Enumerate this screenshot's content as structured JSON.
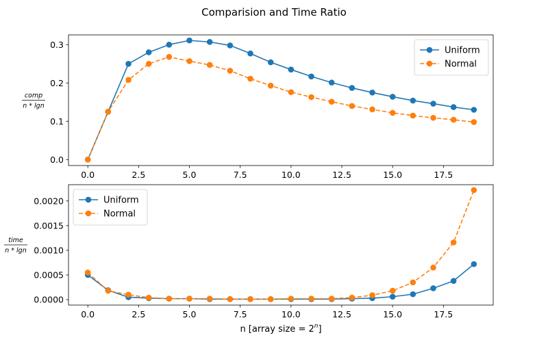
{
  "colors": {
    "uniform": "#1f77b4",
    "normal": "#ff7f0e"
  },
  "chart_data": [
    {
      "type": "line",
      "title": "Comparision and Time Ratio",
      "ylabel": {
        "numerator": "comp",
        "denominator": "n * lgn"
      },
      "xlabel": "",
      "xlim": [
        -0.95,
        19.95
      ],
      "ylim": [
        -0.0155,
        0.3255
      ],
      "xticks": [
        0.0,
        2.5,
        5.0,
        7.5,
        10.0,
        12.5,
        15.0,
        17.5
      ],
      "xtick_labels": [
        "0.0",
        "2.5",
        "5.0",
        "7.5",
        "10.0",
        "12.5",
        "15.0",
        "17.5"
      ],
      "yticks": [
        0.0,
        0.1,
        0.2,
        0.3
      ],
      "ytick_labels": [
        "0.0",
        "0.1",
        "0.2",
        "0.3"
      ],
      "legend_position": "top-right",
      "x": [
        0,
        1,
        2,
        3,
        4,
        5,
        6,
        7,
        8,
        9,
        10,
        11,
        12,
        13,
        14,
        15,
        16,
        17,
        18,
        19
      ],
      "series": [
        {
          "name": "Uniform",
          "style": "solid",
          "color": "#1f77b4",
          "values": [
            0.0,
            0.125,
            0.25,
            0.28,
            0.3,
            0.311,
            0.307,
            0.298,
            0.277,
            0.254,
            0.235,
            0.217,
            0.201,
            0.187,
            0.175,
            0.164,
            0.154,
            0.146,
            0.137,
            0.13
          ]
        },
        {
          "name": "Normal",
          "style": "dashed",
          "color": "#ff7f0e",
          "values": [
            0.0,
            0.125,
            0.208,
            0.25,
            0.268,
            0.257,
            0.247,
            0.232,
            0.211,
            0.193,
            0.176,
            0.163,
            0.151,
            0.14,
            0.131,
            0.122,
            0.115,
            0.109,
            0.104,
            0.098
          ]
        }
      ]
    },
    {
      "type": "line",
      "title": "",
      "ylabel": {
        "numerator": "time",
        "denominator": "n * lgn"
      },
      "xlabel": "n [array size = 2",
      "xlabel_superscript": "n",
      "xlabel_suffix": "]",
      "xlim": [
        -0.95,
        19.95
      ],
      "ylim": [
        -0.00011,
        0.00233
      ],
      "xticks": [
        0.0,
        2.5,
        5.0,
        7.5,
        10.0,
        12.5,
        15.0,
        17.5
      ],
      "xtick_labels": [
        "0.0",
        "2.5",
        "5.0",
        "7.5",
        "10.0",
        "12.5",
        "15.0",
        "17.5"
      ],
      "yticks": [
        0.0,
        0.0005,
        0.001,
        0.0015,
        0.002
      ],
      "ytick_labels": [
        "0.0000",
        "0.0005",
        "0.0010",
        "0.0015",
        "0.0020"
      ],
      "legend_position": "top-left",
      "x": [
        0,
        1,
        2,
        3,
        4,
        5,
        6,
        7,
        8,
        9,
        10,
        11,
        12,
        13,
        14,
        15,
        16,
        17,
        18,
        19
      ],
      "series": [
        {
          "name": "Uniform",
          "style": "solid",
          "color": "#1f77b4",
          "values": [
            0.0005,
            0.00019,
            5e-05,
            3e-05,
            2e-05,
            2e-05,
            1e-05,
            1e-05,
            1e-05,
            1e-05,
            1e-05,
            1e-05,
            1e-05,
            2e-05,
            3e-05,
            6e-05,
            0.00011,
            0.00023,
            0.00038,
            0.00072
          ]
        },
        {
          "name": "Normal",
          "style": "dashed",
          "color": "#ff7f0e",
          "values": [
            0.00055,
            0.00018,
            0.0001,
            4e-05,
            2e-05,
            2e-05,
            2e-05,
            1e-05,
            1e-05,
            1e-05,
            2e-05,
            2e-05,
            2e-05,
            4e-05,
            9e-05,
            0.00018,
            0.00035,
            0.00065,
            0.00116,
            0.00222
          ]
        }
      ]
    }
  ]
}
